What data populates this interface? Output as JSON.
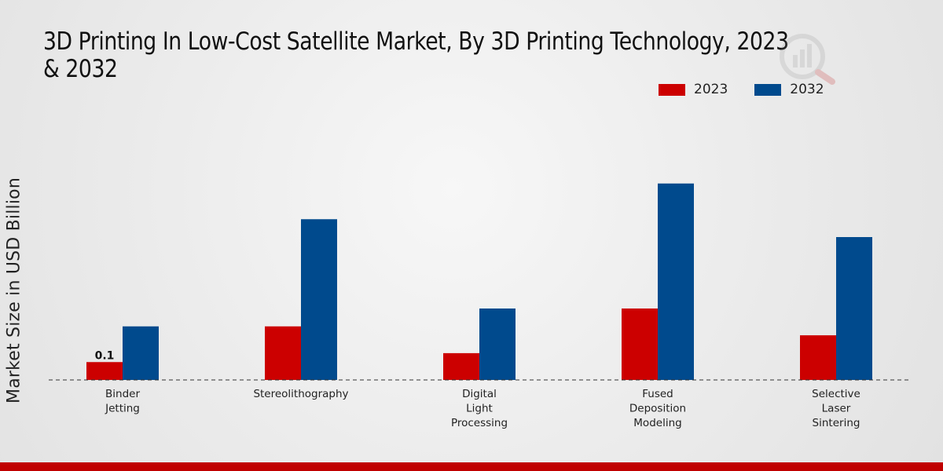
{
  "chart_data": {
    "type": "bar",
    "title": "3D Printing In Low-Cost Satellite Market, By 3D Printing Technology, 2023 & 2032",
    "xlabel": "",
    "ylabel": "Market Size in USD Billion",
    "categories": [
      "Binder\nJetting",
      "Stereolithography",
      "Digital\nLight\nProcessing",
      "Fused\nDeposition\nModeling",
      "Selective\nLaser\nSintering"
    ],
    "series": [
      {
        "name": "2023",
        "color": "#cc0000",
        "values": [
          0.1,
          0.3,
          0.15,
          0.4,
          0.25
        ]
      },
      {
        "name": "2032",
        "color": "#004a8d",
        "values": [
          0.3,
          0.9,
          0.4,
          1.1,
          0.8
        ]
      }
    ],
    "ylim": [
      0,
      1.6
    ],
    "legend_position": "top-right",
    "grid": false,
    "data_labels": [
      {
        "series": "2023",
        "category_index": 0,
        "text": "0.1"
      }
    ]
  }
}
